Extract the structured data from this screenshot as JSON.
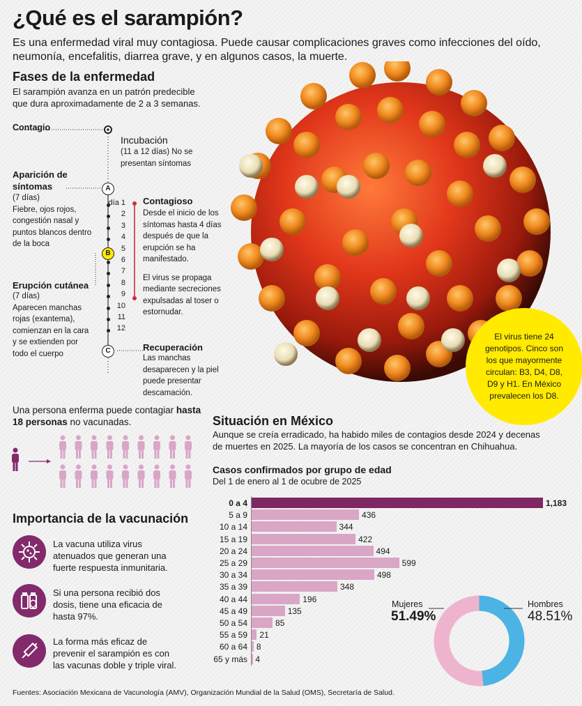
{
  "title": "¿Qué es el sarampión?",
  "intro": "Es una enfermedad viral muy contagiosa. Puede causar complicaciones graves como infecciones del oído, neumonía, encefalitis, diarrea grave, y en algunos casos, la muerte.",
  "phases": {
    "heading": "Fases de la enfermedad",
    "subtitle": "El sarampión avanza en un patrón predecible que dura aproximadamente de 2 a 3 semanas.",
    "contagio": "Contagio",
    "incubacion_title": "Incubación",
    "incubacion_desc": "(11 a 12 días) No se presentan síntomas",
    "aparicion_title": "Aparición de síntomas",
    "aparicion_days": "(7 días)",
    "aparicion_desc": "Fiebre, ojos rojos, congestión nasal y puntos blancos dentro de la boca",
    "erupcion_title": "Erupción cutánea",
    "erupcion_days": "(7 días)",
    "erupcion_desc": "Aparecen manchas rojas (exantema), comienzan en la cara y se extienden por todo el cuerpo",
    "contagioso_title": "Contagioso",
    "contagioso_desc1": "Desde el inicio de los síntomas hasta 4 días después de que la erupción se ha manifestado.",
    "contagioso_desc2": "El virus se propaga mediante secreciones expulsadas al toser o estornudar.",
    "recuperacion_title": "Recuperación",
    "recuperacion_desc": "Las manchas desaparecen y la piel puede presentar descamación.",
    "markers": [
      "A",
      "B",
      "C"
    ],
    "days": [
      "día 1",
      "2",
      "3",
      "4",
      "5",
      "6",
      "7",
      "8",
      "9",
      "10",
      "11",
      "12"
    ]
  },
  "genotypes": "El virus tiene 24 genotipos. Cinco son los que mayormente circulan: B3, D4, D8, D9 y H1. En México prevalecen los D8.",
  "contagion": {
    "text_a": "Una persona enferma puede contagiar ",
    "text_b": "hasta 18 personas",
    "text_c": " no vacunadas."
  },
  "vaccination": {
    "heading": "Importancia de la vacunación",
    "items": [
      {
        "icon": "virus-icon",
        "text": "La vacuna utiliza virus atenuados que generan una fuerte respuesta inmunitaria."
      },
      {
        "icon": "vaccine-vials-icon",
        "text": "Si una persona recibió dos dosis, tiene una eficacia de hasta 97%."
      },
      {
        "icon": "syringe-icon",
        "text": "La forma más eficaz de prevenir el sarampión es con las vacunas doble y triple viral."
      }
    ]
  },
  "situation": {
    "heading": "Situación en México",
    "text": "Aunque se creía erradicado, ha habido miles de contagios desde 2024 y decenas de muertes en 2025. La mayoría de los casos se concentran en Chihuahua."
  },
  "chart_data": [
    {
      "type": "bar",
      "orientation": "horizontal",
      "title": "Casos confirmados por grupo de edad",
      "subtitle": "Del 1 de enero al 1 de ocubre de 2025",
      "categories": [
        "0 a 4",
        "5 a 9",
        "10 a 14",
        "15 a 19",
        "20 a 24",
        "25 a 29",
        "30 a 34",
        "35 a 39",
        "40 a 44",
        "45 a 49",
        "50 a 54",
        "55 a 59",
        "60 a 64",
        "65 y más"
      ],
      "values": [
        1183,
        436,
        344,
        422,
        494,
        599,
        498,
        348,
        196,
        135,
        85,
        21,
        8,
        4
      ],
      "value_labels": [
        "1,183",
        "436",
        "344",
        "422",
        "494",
        "599",
        "498",
        "348",
        "196",
        "135",
        "85",
        "21",
        "8",
        "4"
      ],
      "colors": {
        "highlight": "#7e2762",
        "bar": "#d9a6c6"
      }
    },
    {
      "type": "pie",
      "donut": true,
      "labels": [
        "Mujeres",
        "Hombres"
      ],
      "values": [
        51.49,
        48.51
      ],
      "value_labels": [
        "51.49%",
        "48.51%"
      ],
      "colors": [
        "#efb4cd",
        "#4bb4e4"
      ]
    }
  ],
  "sources": "Fuentes: Asociación Mexicana de Vacunología (AMV), Organización Mundial de la Salud (OMS), Secretaría de Salud.",
  "colors": {
    "purple": "#822a6b",
    "person": "#d9a6c6",
    "red_line": "#d22b3b",
    "yellow": "#ffea00"
  }
}
